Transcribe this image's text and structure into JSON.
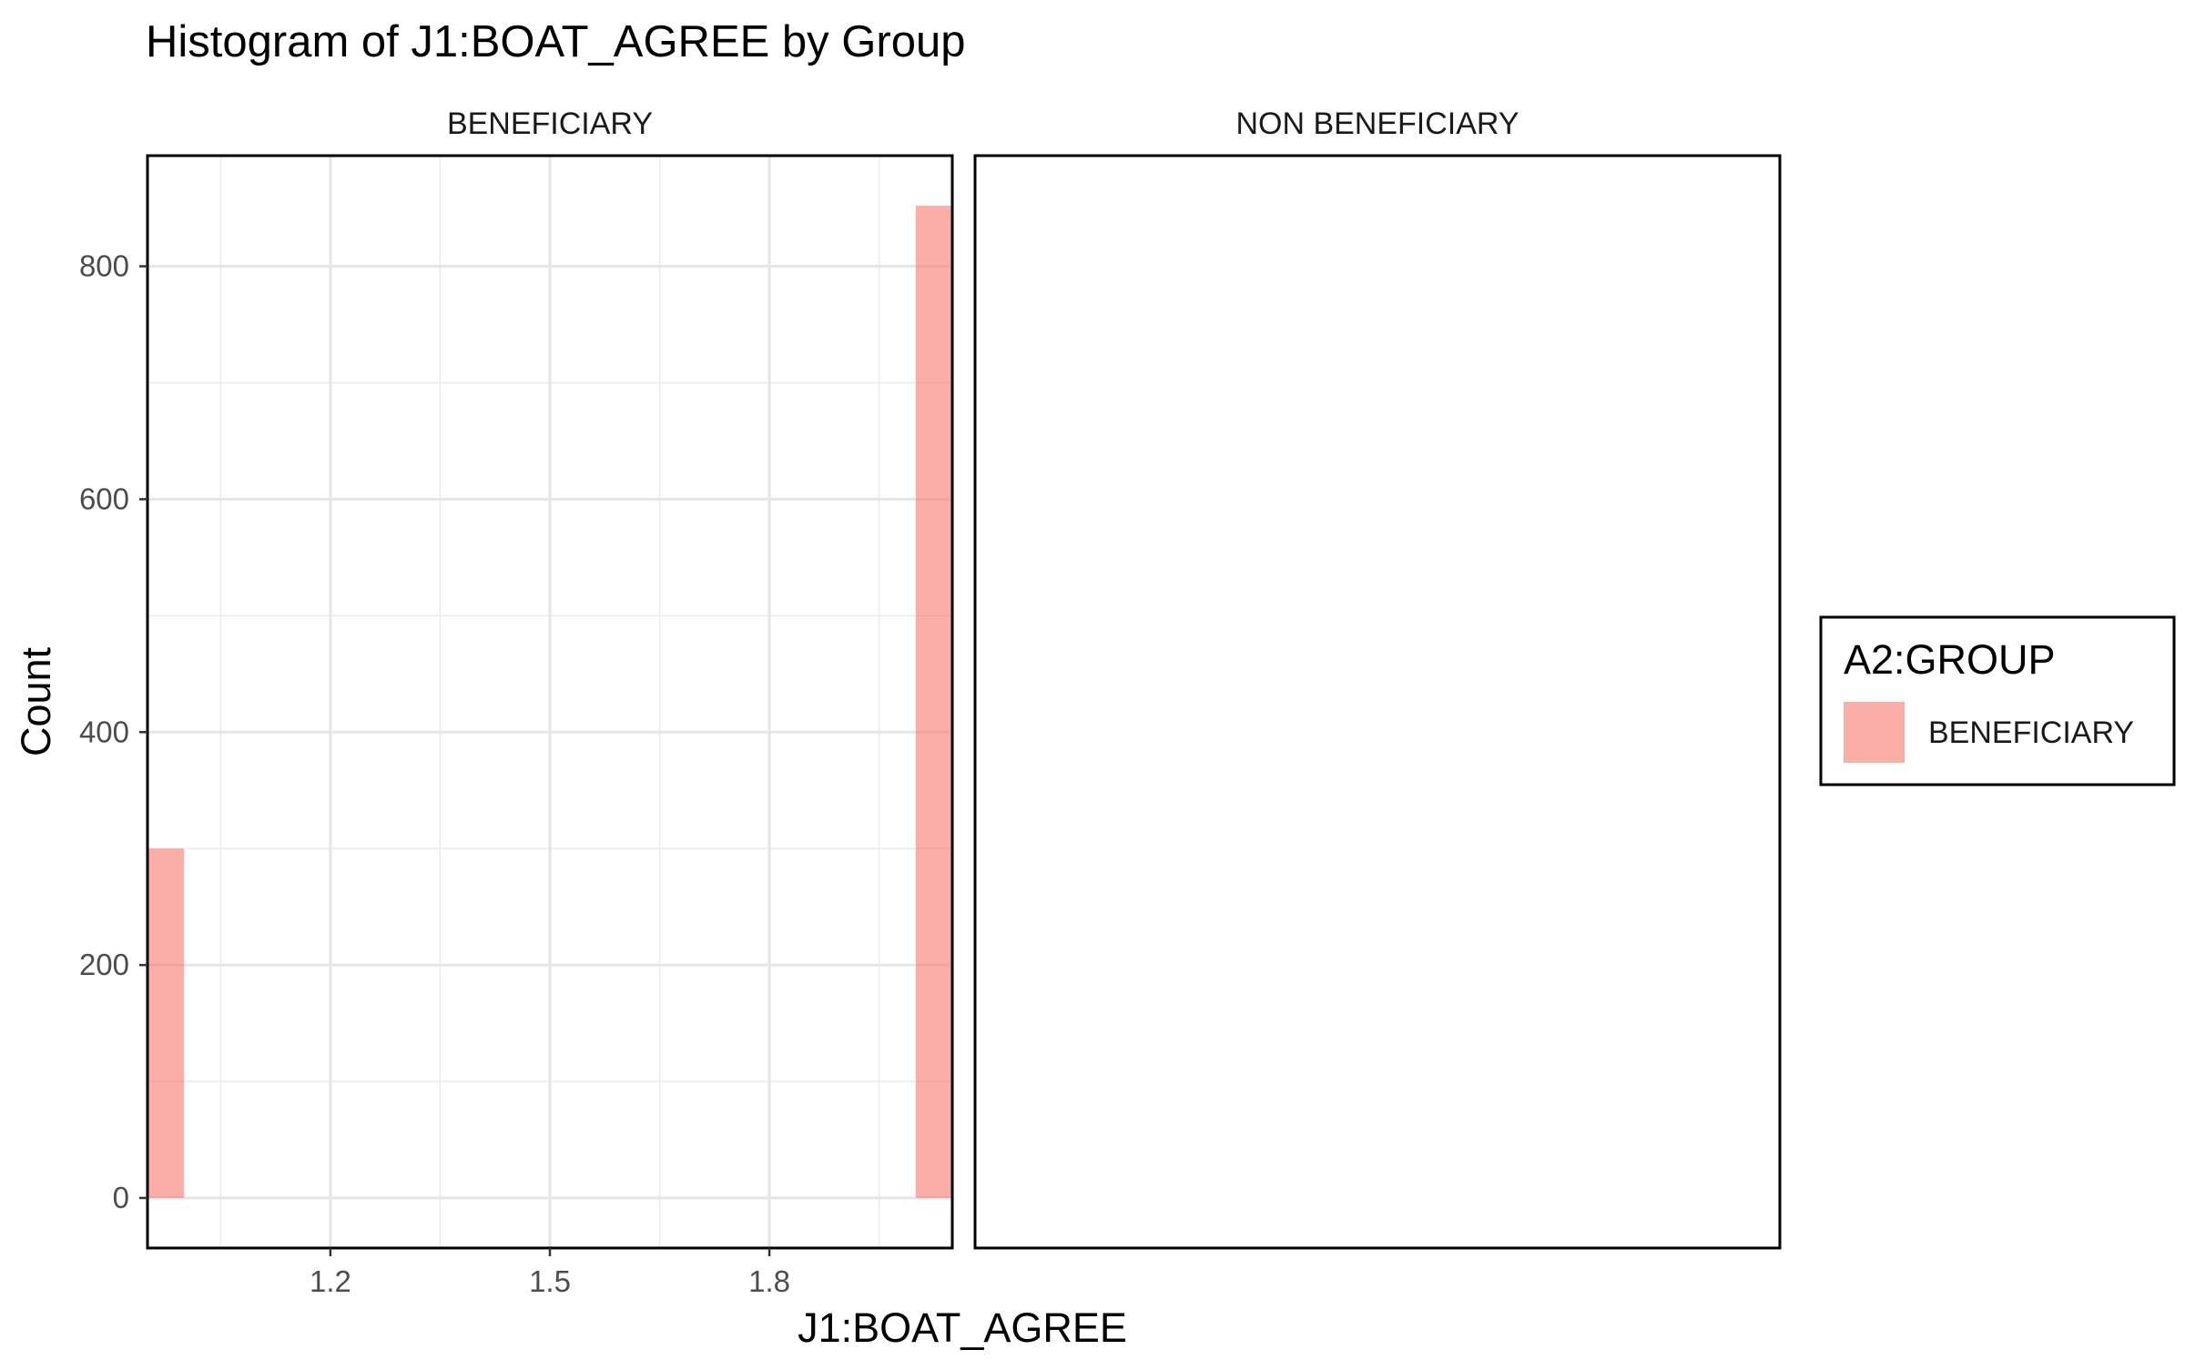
{
  "chart_data": {
    "type": "bar",
    "title": "Histogram of J1:BOAT_AGREE by Group",
    "xlabel": "J1:BOAT_AGREE",
    "ylabel": "Count",
    "facets": [
      "BENEFICIARY",
      "NON BENEFICIARY"
    ],
    "x_ticks": [
      1.2,
      1.5,
      1.8
    ],
    "x_tick_labels": [
      "1.2",
      "1.5",
      "1.8"
    ],
    "y_ticks": [
      0,
      200,
      400,
      600,
      800
    ],
    "y_tick_labels": [
      "0",
      "200",
      "400",
      "600",
      "800"
    ],
    "xlim": [
      0.95,
      2.05
    ],
    "ylim": [
      -43,
      895
    ],
    "grid": true,
    "legend": {
      "title": "A2:GROUP",
      "position": "right",
      "entries": [
        "BENEFICIARY"
      ]
    },
    "series": [
      {
        "name": "BENEFICIARY",
        "color": "#F8766D",
        "facet": "BENEFICIARY",
        "bins": [
          {
            "x_min": 0.95,
            "x_max": 1.0,
            "count": 300
          },
          {
            "x_min": 2.0,
            "x_max": 2.05,
            "count": 852
          }
        ]
      }
    ]
  }
}
